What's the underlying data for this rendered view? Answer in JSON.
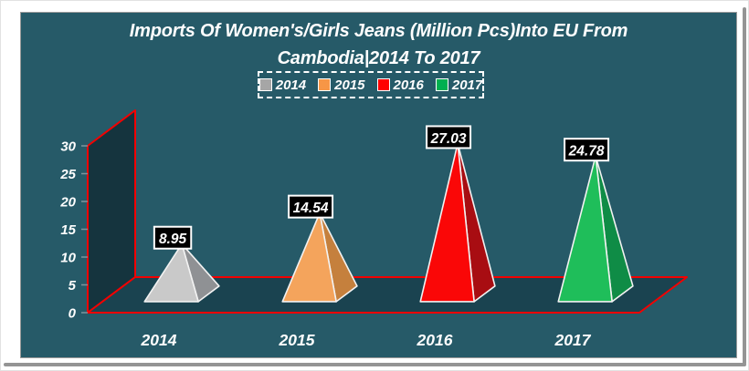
{
  "chart_data": {
    "type": "bar",
    "variant": "3d-pyramid",
    "title": "Imports Of Women's/Girls Jeans (Million Pcs)Into EU From Cambodia|2014 To 2017",
    "title_lines": [
      "Imports Of Women's/Girls Jeans (Million Pcs)Into EU From",
      "Cambodia|2014 To 2017"
    ],
    "categories": [
      "2014",
      "2015",
      "2016",
      "2017"
    ],
    "values": [
      8.95,
      14.54,
      27.03,
      24.78
    ],
    "data_labels": [
      "8.95",
      "14.54",
      "27.03",
      "24.78"
    ],
    "xlabel": "",
    "ylabel": "",
    "ylim": [
      0,
      30
    ],
    "yticks": [
      0,
      5,
      10,
      15,
      20,
      25,
      30
    ],
    "grid": false,
    "legend": {
      "position": "top-center",
      "border": "dashed-white",
      "entries": [
        {
          "label": "2014",
          "color": "#A6A6A6"
        },
        {
          "label": "2015",
          "color": "#F79646"
        },
        {
          "label": "2016",
          "color": "#FF0000"
        },
        {
          "label": "2017",
          "color": "#00B050"
        }
      ]
    },
    "series_colors": [
      {
        "front": "#C9C9C9",
        "side": "#8F9194"
      },
      {
        "front": "#F4A45C",
        "side": "#C5803D"
      },
      {
        "front": "#FA0707",
        "side": "#A80D12"
      },
      {
        "front": "#1FBE5A",
        "side": "#0F8C46"
      }
    ]
  },
  "colors": {
    "panel_background": "#265A68",
    "side_wall": "#15343E",
    "floor": "#1A4350",
    "axis_outline": "#F40000",
    "tick": "#7E959D",
    "text": "#FFFFFF",
    "label_box_bg": "#000000",
    "label_box_border": "#FFFFFF"
  }
}
